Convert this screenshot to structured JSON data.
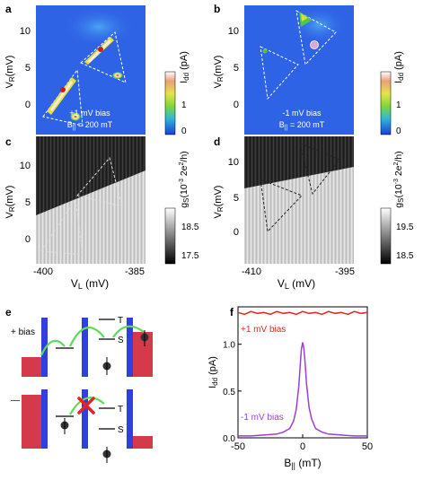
{
  "panels": {
    "a": {
      "label": "a",
      "ylabel": "V_R(mV)",
      "yticks": [
        "10",
        "5",
        "0"
      ],
      "colorbar_label": "I_dd (pA)",
      "colorbar_ticks": [
        "1",
        "0"
      ],
      "annotation_line1": "+1 mV bias",
      "annotation_line2": "B_|| = 200 mT"
    },
    "b": {
      "label": "b",
      "ylabel": "V_R(mV)",
      "yticks": [
        "10",
        "5",
        "0"
      ],
      "colorbar_label": "I_dd (pA)",
      "colorbar_ticks": [
        "1",
        "0"
      ],
      "annotation_line1": "-1 mV bias",
      "annotation_line2": "B_|| = 200 mT"
    },
    "c": {
      "label": "c",
      "ylabel": "V_R(mV)",
      "yticks": [
        "10",
        "5",
        "0"
      ],
      "colorbar_label": "g_S(10^-3 2e^2/h)",
      "colorbar_ticks": [
        "18.5",
        "17.5"
      ],
      "xlabel": "V_L (mV)",
      "xticks": [
        "-400",
        "-385"
      ]
    },
    "d": {
      "label": "d",
      "ylabel": "V_R(mV)",
      "yticks": [
        "10",
        "5",
        "0"
      ],
      "colorbar_label": "g_S(10^-3 2e^2/h)",
      "colorbar_ticks": [
        "19.5",
        "18.5"
      ],
      "xlabel": "V_L (mV)",
      "xticks": [
        "-410",
        "-395"
      ]
    },
    "e": {
      "label": "e",
      "top_bias": "+ bias",
      "bottom_bias": "— bias",
      "level_T": "T",
      "level_S": "S"
    },
    "f": {
      "label": "f",
      "ylabel": "I_dd (pA)",
      "xlabel": "B_|| (mT)",
      "legend_plus": "+1 mV bias",
      "legend_minus": "-1 mV bias"
    }
  },
  "chart_data": {
    "type": "line",
    "xlim": [
      -50,
      50
    ],
    "ylim": [
      0,
      1.4
    ],
    "xticks": [
      -50,
      0,
      50
    ],
    "yticks": [
      0.0,
      0.5,
      1.0
    ],
    "series": [
      {
        "name": "+1 mV bias",
        "color": "#e8231f",
        "x": [
          -50,
          -45,
          -40,
          -35,
          -30,
          -25,
          -20,
          -15,
          -10,
          -5,
          0,
          5,
          10,
          15,
          20,
          25,
          30,
          35,
          40,
          45,
          50
        ],
        "y": [
          1.34,
          1.32,
          1.35,
          1.33,
          1.34,
          1.32,
          1.35,
          1.33,
          1.34,
          1.32,
          1.35,
          1.33,
          1.34,
          1.32,
          1.35,
          1.33,
          1.34,
          1.32,
          1.35,
          1.33,
          1.34
        ]
      },
      {
        "name": "-1 mV bias",
        "color": "#9b3fd6",
        "x": [
          -50,
          -40,
          -30,
          -20,
          -15,
          -10,
          -7,
          -5,
          -3,
          -2,
          -1,
          0,
          1,
          2,
          3,
          5,
          7,
          10,
          15,
          20,
          30,
          40,
          50
        ],
        "y": [
          0.02,
          0.02,
          0.03,
          0.04,
          0.06,
          0.1,
          0.18,
          0.3,
          0.55,
          0.75,
          0.95,
          1.02,
          0.95,
          0.78,
          0.58,
          0.32,
          0.2,
          0.1,
          0.06,
          0.04,
          0.03,
          0.02,
          0.02
        ]
      }
    ]
  }
}
